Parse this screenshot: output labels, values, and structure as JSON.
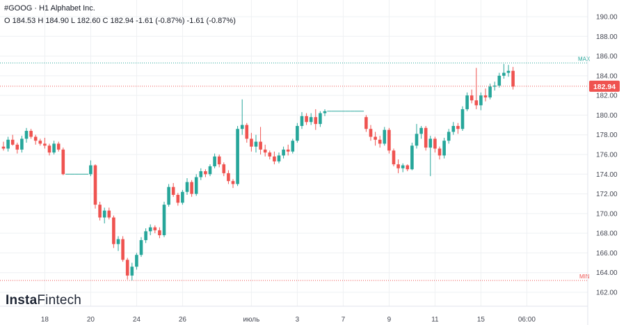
{
  "header": {
    "symbol_line": "#GOOG · H1 Alphabet Inc.",
    "ohlc_line": "O 184.53 H 184.90 L 182.60 C 182.94 -1.61 (-0.87%) -1.61 (-0.87%)"
  },
  "logo": {
    "brand_a": "Insta",
    "brand_b": "Fintech"
  },
  "colors": {
    "up": "#26a69a",
    "down": "#ef5350",
    "grid": "#eef0f3",
    "max_line": "#26a69a",
    "min_line": "#ef5350",
    "price_label_bg": "#ef5350"
  },
  "chart_data": {
    "type": "candlestick",
    "title": "#GOOG · H1 Alphabet Inc.",
    "ylim": [
      161,
      191
    ],
    "y_ticks": [
      162,
      164,
      166,
      168,
      170,
      172,
      174,
      176,
      178,
      180,
      182,
      184,
      186,
      188,
      190
    ],
    "y_tick_labels": [
      "162.00",
      "164.00",
      "166.00",
      "168.00",
      "170.00",
      "172.00",
      "174.00",
      "176.00",
      "178.00",
      "180.00",
      "182.00",
      "184.00",
      "186.00",
      "188.00",
      "190.00"
    ],
    "x_tick_labels": [
      {
        "label": "18",
        "index": 9
      },
      {
        "label": "20",
        "index": 19
      },
      {
        "label": "24",
        "index": 29
      },
      {
        "label": "26",
        "index": 39
      },
      {
        "label": "июль",
        "index": 54
      },
      {
        "label": "3",
        "index": 64
      },
      {
        "label": "7",
        "index": 74
      },
      {
        "label": "9",
        "index": 84
      },
      {
        "label": "11",
        "index": 94
      },
      {
        "label": "15",
        "index": 104
      },
      {
        "label": "06:00",
        "index": 114
      }
    ],
    "max_level": {
      "label": "MAX",
      "value": 185.3
    },
    "min_level": {
      "label": "MIN",
      "value": 163.2
    },
    "last_price": {
      "label": "182.94",
      "value": 182.94
    },
    "candles": [
      [
        176.8,
        177.3,
        176.4,
        176.6
      ],
      [
        176.6,
        177.8,
        176.3,
        177.5
      ],
      [
        177.5,
        178.0,
        176.9,
        177.0
      ],
      [
        177.0,
        177.2,
        176.1,
        176.5
      ],
      [
        176.5,
        177.9,
        176.2,
        177.6
      ],
      [
        177.6,
        178.7,
        177.2,
        178.4
      ],
      [
        178.4,
        178.6,
        177.6,
        177.8
      ],
      [
        177.8,
        178.0,
        177.0,
        177.4
      ],
      [
        177.4,
        177.6,
        176.9,
        177.1
      ],
      [
        177.1,
        177.7,
        176.6,
        176.9
      ],
      [
        176.9,
        177.1,
        175.9,
        176.2
      ],
      [
        176.2,
        177.4,
        176.0,
        177.1
      ],
      [
        177.1,
        177.3,
        176.3,
        176.5
      ],
      [
        176.5,
        176.7,
        173.9,
        174.0
      ],
      [
        174.0,
        174.0,
        174.0,
        174.0
      ],
      [
        174.0,
        174.0,
        174.0,
        174.0
      ],
      [
        174.0,
        174.0,
        174.0,
        174.0
      ],
      [
        174.0,
        174.0,
        174.0,
        174.0
      ],
      [
        174.0,
        174.0,
        174.0,
        174.0
      ],
      [
        174.0,
        175.4,
        173.8,
        174.9
      ],
      [
        174.9,
        175.0,
        170.5,
        170.9
      ],
      [
        170.9,
        171.2,
        169.3,
        169.6
      ],
      [
        169.6,
        170.6,
        169.0,
        170.3
      ],
      [
        170.3,
        170.6,
        169.4,
        169.6
      ],
      [
        169.6,
        169.8,
        166.5,
        166.9
      ],
      [
        166.9,
        167.7,
        166.2,
        167.4
      ],
      [
        167.4,
        167.7,
        165.1,
        165.3
      ],
      [
        165.3,
        165.5,
        163.3,
        163.7
      ],
      [
        163.7,
        165.0,
        163.2,
        164.6
      ],
      [
        164.6,
        166.0,
        164.3,
        165.8
      ],
      [
        165.8,
        167.6,
        165.6,
        167.3
      ],
      [
        167.3,
        168.5,
        167.0,
        168.2
      ],
      [
        168.2,
        168.9,
        167.8,
        168.6
      ],
      [
        168.6,
        168.8,
        168.0,
        168.3
      ],
      [
        168.3,
        168.6,
        167.5,
        167.8
      ],
      [
        167.8,
        171.2,
        167.6,
        170.9
      ],
      [
        170.9,
        173.0,
        170.7,
        172.7
      ],
      [
        172.7,
        173.1,
        171.7,
        171.9
      ],
      [
        171.9,
        172.1,
        170.8,
        171.1
      ],
      [
        171.1,
        172.4,
        170.9,
        172.2
      ],
      [
        172.2,
        173.6,
        171.9,
        173.2
      ],
      [
        173.2,
        173.4,
        171.7,
        172.0
      ],
      [
        172.0,
        174.0,
        171.8,
        173.7
      ],
      [
        173.7,
        174.6,
        173.4,
        174.3
      ],
      [
        174.3,
        174.5,
        173.7,
        174.0
      ],
      [
        174.0,
        175.0,
        173.8,
        174.8
      ],
      [
        174.8,
        176.1,
        174.6,
        175.8
      ],
      [
        175.8,
        176.0,
        174.7,
        175.0
      ],
      [
        175.0,
        175.2,
        173.8,
        174.1
      ],
      [
        174.1,
        174.4,
        173.0,
        173.3
      ],
      [
        173.3,
        173.5,
        172.6,
        173.0
      ],
      [
        173.0,
        178.9,
        172.8,
        178.6
      ],
      [
        178.6,
        181.6,
        178.0,
        179.0
      ],
      [
        179.0,
        179.2,
        177.2,
        177.6
      ],
      [
        177.6,
        178.2,
        176.3,
        176.8
      ],
      [
        176.8,
        178.0,
        176.2,
        177.3
      ],
      [
        177.3,
        178.8,
        176.0,
        176.5
      ],
      [
        176.5,
        177.0,
        175.8,
        176.2
      ],
      [
        176.2,
        176.4,
        175.5,
        175.8
      ],
      [
        175.8,
        176.3,
        175.0,
        175.3
      ],
      [
        175.3,
        176.2,
        175.1,
        175.9
      ],
      [
        175.9,
        176.8,
        175.6,
        176.5
      ],
      [
        176.5,
        177.0,
        175.9,
        176.3
      ],
      [
        176.3,
        177.6,
        176.1,
        177.4
      ],
      [
        177.4,
        179.2,
        177.2,
        178.9
      ],
      [
        178.9,
        180.3,
        178.6,
        179.9
      ],
      [
        179.9,
        180.2,
        179.0,
        179.3
      ],
      [
        179.3,
        180.2,
        179.0,
        179.8
      ],
      [
        179.8,
        180.6,
        178.5,
        179.1
      ],
      [
        179.1,
        180.4,
        178.8,
        180.2
      ],
      [
        180.2,
        180.6,
        179.9,
        180.4
      ],
      [
        180.4,
        180.4,
        180.4,
        180.4
      ],
      [
        180.4,
        180.4,
        180.4,
        180.4
      ],
      [
        180.4,
        180.4,
        180.4,
        180.4
      ],
      [
        180.4,
        180.4,
        180.4,
        180.4
      ],
      [
        180.4,
        180.4,
        180.4,
        180.4
      ],
      [
        180.4,
        180.4,
        180.4,
        180.4
      ],
      [
        180.4,
        180.4,
        180.4,
        180.4
      ],
      [
        180.4,
        180.4,
        180.4,
        180.4
      ],
      [
        179.8,
        180.0,
        178.3,
        178.6
      ],
      [
        178.6,
        179.0,
        177.4,
        177.8
      ],
      [
        177.8,
        178.3,
        176.9,
        177.5
      ],
      [
        177.5,
        177.9,
        176.7,
        177.1
      ],
      [
        177.1,
        178.8,
        176.9,
        178.5
      ],
      [
        178.5,
        178.7,
        176.1,
        176.4
      ],
      [
        176.4,
        176.6,
        174.8,
        175.0
      ],
      [
        175.0,
        175.5,
        174.1,
        174.6
      ],
      [
        174.6,
        175.1,
        174.2,
        174.9
      ],
      [
        174.9,
        175.0,
        174.3,
        174.5
      ],
      [
        174.5,
        177.2,
        174.4,
        176.9
      ],
      [
        176.9,
        179.1,
        176.6,
        178.1
      ],
      [
        178.1,
        178.9,
        177.6,
        178.7
      ],
      [
        178.7,
        178.9,
        176.4,
        176.7
      ],
      [
        176.7,
        177.9,
        173.8,
        177.6
      ],
      [
        177.6,
        177.8,
        176.2,
        176.6
      ],
      [
        176.6,
        176.8,
        175.5,
        175.9
      ],
      [
        175.9,
        177.7,
        175.6,
        177.4
      ],
      [
        177.4,
        178.6,
        177.1,
        178.3
      ],
      [
        178.3,
        179.3,
        178.0,
        178.9
      ],
      [
        178.9,
        179.2,
        178.1,
        178.6
      ],
      [
        178.6,
        180.9,
        178.4,
        180.6
      ],
      [
        180.6,
        182.3,
        180.4,
        182.0
      ],
      [
        182.0,
        182.6,
        181.2,
        181.5
      ],
      [
        181.5,
        184.8,
        180.6,
        181.0
      ],
      [
        181.0,
        182.3,
        180.5,
        182.0
      ],
      [
        182.0,
        182.7,
        181.4,
        181.8
      ],
      [
        181.8,
        183.2,
        181.6,
        182.9
      ],
      [
        182.9,
        183.4,
        182.5,
        183.0
      ],
      [
        183.0,
        184.3,
        182.8,
        184.0
      ],
      [
        184.0,
        185.2,
        183.7,
        184.3
      ],
      [
        184.3,
        185.1,
        183.9,
        184.5
      ],
      [
        184.5,
        184.9,
        182.6,
        182.9
      ]
    ]
  }
}
